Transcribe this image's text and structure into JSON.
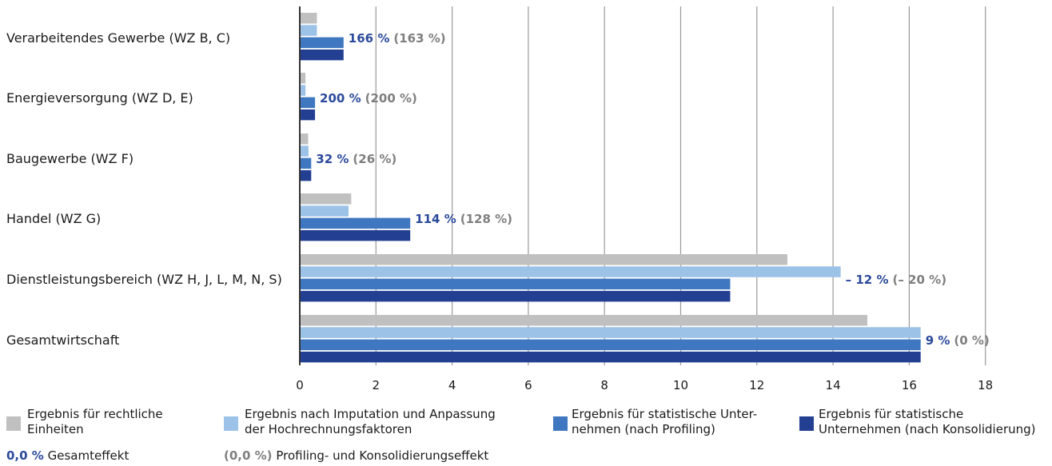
{
  "chart_data": {
    "type": "bar",
    "orientation": "horizontal",
    "categories": [
      "Verarbeitendes Gewerbe (WZ B, C)",
      "Energieversorgung (WZ D, E)",
      "Baugewerbe (WZ F)",
      "Handel (WZ G)",
      "Dienstleistungsbereich (WZ H, J, L, M, N, S)",
      "Gesamtwirtschaft"
    ],
    "series": [
      {
        "name": "Ergebnis für rechtliche Einheiten",
        "color": "#c0c0c0",
        "values": [
          0.45,
          0.15,
          0.22,
          1.35,
          12.8,
          14.9
        ]
      },
      {
        "name": "Ergebnis nach Imputation und Anpassung der Hochrechnungsfaktoren",
        "color": "#9cc2e8",
        "values": [
          0.45,
          0.15,
          0.23,
          1.28,
          14.2,
          16.3
        ]
      },
      {
        "name": "Ergebnis für statistische Unternehmen (nach Profiling)",
        "color": "#3f78c1",
        "values": [
          1.15,
          0.4,
          0.3,
          2.9,
          11.3,
          16.3
        ]
      },
      {
        "name": "Ergebnis für statistische Unternehmen (nach Konsolidierung)",
        "color": "#233f92",
        "values": [
          1.15,
          0.4,
          0.3,
          2.9,
          11.3,
          16.3
        ]
      }
    ],
    "annotations": [
      {
        "total": "166 %",
        "profiling": "(163 %)"
      },
      {
        "total": "200 %",
        "profiling": "(200 %)"
      },
      {
        "total": "32 %",
        "profiling": "(26 %)"
      },
      {
        "total": "114 %",
        "profiling": "(128 %)"
      },
      {
        "total": "– 12 %",
        "profiling": "(– 20 %)"
      },
      {
        "total": "9 %",
        "profiling": "(0 %)"
      }
    ],
    "xlim": [
      0,
      18
    ],
    "xticks": [
      "0",
      "2",
      "4",
      "6",
      "8",
      "10",
      "12",
      "14",
      "16",
      "18"
    ],
    "grid": "vertical",
    "legend_position": "bottom"
  },
  "legend": {
    "items": [
      {
        "line1": "Ergebnis für rechtliche",
        "line2": "Einheiten"
      },
      {
        "line1": "Ergebnis nach Imputation und Anpassung",
        "line2": "der Hochrechnungsfaktoren"
      },
      {
        "line1": "Ergebnis für statistische Unter-",
        "line2": "nehmen (nach Profiling)"
      },
      {
        "line1": "Ergebnis für statistische",
        "line2": "Unternehmen (nach Konsolidierung)"
      }
    ],
    "note_total_value": "0,0 %",
    "note_total_label": "Gesamteffekt",
    "note_prof_value": "(0,0 %)",
    "note_prof_label": "Profiling- und Konsolidierungseffekt"
  }
}
